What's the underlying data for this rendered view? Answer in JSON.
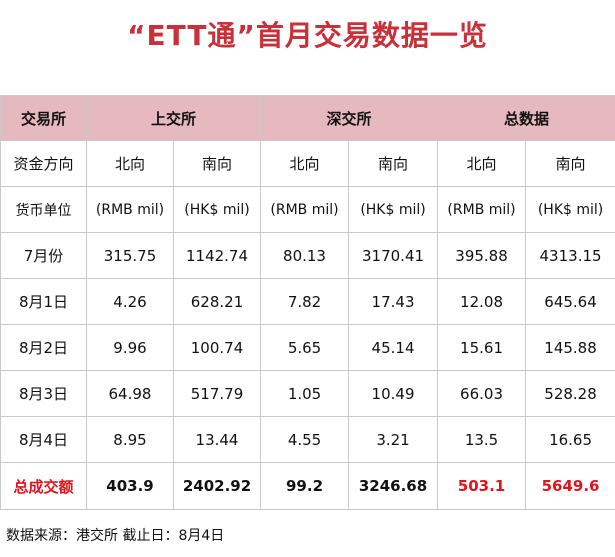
{
  "title": "“ETT通”首月交易数据一览",
  "header": {
    "col0": "交易所",
    "sh": "上交所",
    "sz": "深交所",
    "total": "总数据"
  },
  "direction": {
    "label": "资金方向",
    "values": [
      "北向",
      "南向",
      "北向",
      "南向",
      "北向",
      "南向"
    ]
  },
  "unit": {
    "label": "货币单位",
    "values": [
      "(RMB mil)",
      "(HK$ mil)",
      "(RMB mil)",
      "(HK$ mil)",
      "(RMB mil)",
      "(HK$ mil)"
    ]
  },
  "rows": [
    {
      "label": "7月份",
      "values": [
        "315.75",
        "1142.74",
        "80.13",
        "3170.41",
        "395.88",
        "4313.15"
      ]
    },
    {
      "label": "8月1日",
      "values": [
        "4.26",
        "628.21",
        "7.82",
        "17.43",
        "12.08",
        "645.64"
      ]
    },
    {
      "label": "8月2日",
      "values": [
        "9.96",
        "100.74",
        "5.65",
        "45.14",
        "15.61",
        "145.88"
      ]
    },
    {
      "label": "8月3日",
      "values": [
        "64.98",
        "517.79",
        "1.05",
        "10.49",
        "66.03",
        "528.28"
      ]
    },
    {
      "label": "8月4日",
      "values": [
        "8.95",
        "13.44",
        "4.55",
        "3.21",
        "13.5",
        "16.65"
      ]
    }
  ],
  "total": {
    "label": "总成交额",
    "values": [
      "403.9",
      "2402.92",
      "99.2",
      "3246.68",
      "503.1",
      "5649.6"
    ]
  },
  "footer": "数据来源：港交所  截止日：8月4日",
  "colors": {
    "title": "#c8313a",
    "header_bg": "#e6b8bf",
    "highlight": "#e0141e"
  }
}
